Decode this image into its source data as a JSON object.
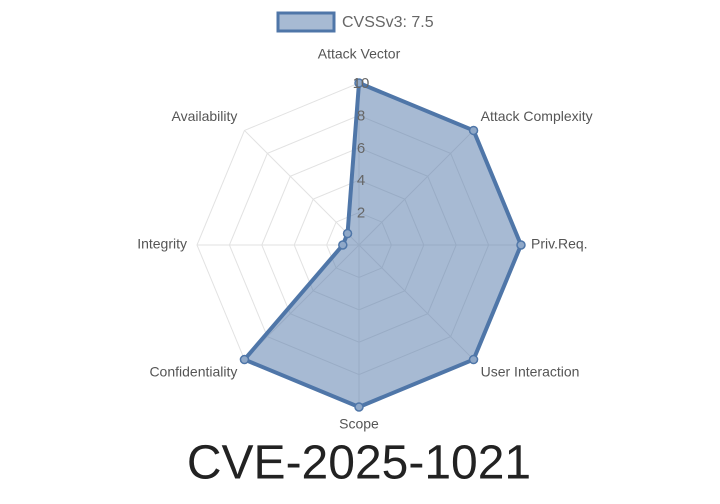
{
  "chart_data": {
    "type": "radar",
    "title": "CVE-2025-1021",
    "categories": [
      "Attack Vector",
      "Attack Complexity",
      "Priv.Req.",
      "User Interaction",
      "Scope",
      "Confidentiality",
      "Integrity",
      "Availability"
    ],
    "series": [
      {
        "name": "CVSSv3: 7.5",
        "color": "#4f76a8",
        "values": [
          10,
          10,
          10,
          10,
          10,
          10,
          1,
          1
        ]
      }
    ],
    "rlim": [
      0,
      10
    ],
    "rticks": [
      2,
      4,
      6,
      8,
      10
    ],
    "grid": true,
    "legend": "top"
  }
}
